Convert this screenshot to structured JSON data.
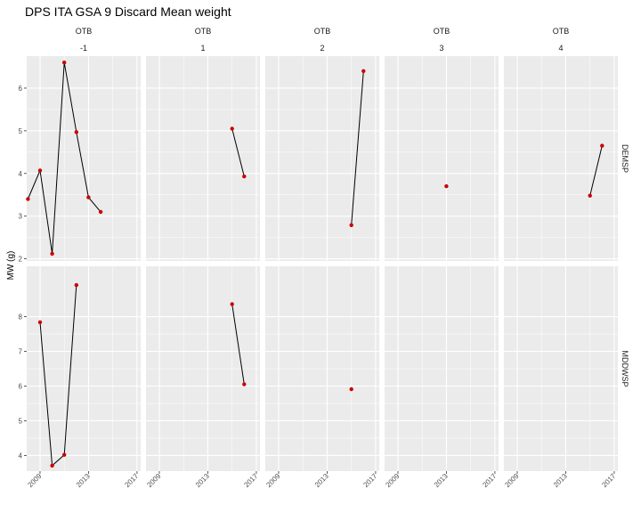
{
  "chart_data": {
    "type": "line",
    "title": "DPS ITA GSA 9 Discard Mean weight",
    "ylabel": "MW (g)",
    "xlabel": "",
    "grid": true,
    "legend": "none",
    "x_ticks": [
      2009,
      2013,
      2017
    ],
    "xlim": [
      2007.9,
      2017.3
    ],
    "col_facets": [
      {
        "header": "OTB",
        "label": "-1"
      },
      {
        "header": "OTB",
        "label": "1"
      },
      {
        "header": "OTB",
        "label": "2"
      },
      {
        "header": "OTB",
        "label": "3"
      },
      {
        "header": "OTB",
        "label": "4"
      }
    ],
    "row_facets": [
      {
        "label": "DEMSP",
        "ylim": [
          1.95,
          6.75
        ],
        "y_ticks": [
          2,
          3,
          4,
          5,
          6
        ]
      },
      {
        "label": "MDDWSP",
        "ylim": [
          3.55,
          9.45
        ],
        "y_ticks": [
          4,
          5,
          6,
          7,
          8
        ]
      }
    ],
    "panels": [
      {
        "row": 0,
        "col": 0,
        "x": [
          2008,
          2009,
          2010,
          2011,
          2012,
          2013,
          2014
        ],
        "y": [
          3.4,
          4.07,
          2.12,
          6.6,
          4.97,
          3.44,
          3.1
        ]
      },
      {
        "row": 0,
        "col": 1,
        "x": [
          2015,
          2016
        ],
        "y": [
          5.05,
          3.93
        ]
      },
      {
        "row": 0,
        "col": 2,
        "x": [
          2015,
          2016
        ],
        "y": [
          2.79,
          6.4
        ]
      },
      {
        "row": 0,
        "col": 3,
        "x": [
          2013
        ],
        "y": [
          3.7
        ]
      },
      {
        "row": 0,
        "col": 4,
        "x": [
          2015,
          2016
        ],
        "y": [
          3.48,
          4.65
        ]
      },
      {
        "row": 1,
        "col": 0,
        "x": [
          2009,
          2010,
          2011,
          2012
        ],
        "y": [
          7.84,
          3.71,
          4.02,
          8.91
        ]
      },
      {
        "row": 1,
        "col": 1,
        "x": [
          2015,
          2016
        ],
        "y": [
          8.36,
          6.05
        ]
      },
      {
        "row": 1,
        "col": 2,
        "x": [
          2015
        ],
        "y": [
          5.91
        ]
      },
      {
        "row": 1,
        "col": 3,
        "x": [],
        "y": []
      },
      {
        "row": 1,
        "col": 4,
        "x": [],
        "y": []
      }
    ],
    "colors": {
      "panel_bg": "#ebebeb",
      "grid_major": "#ffffff",
      "line": "#000000",
      "point": "#cc0000",
      "strip_bg": "#ffffff"
    }
  }
}
